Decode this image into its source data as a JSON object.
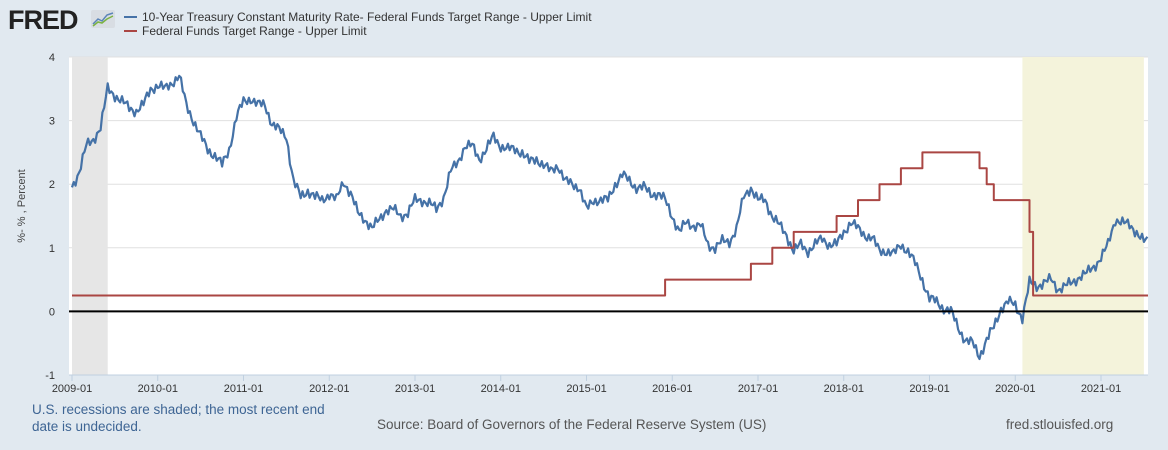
{
  "header": {
    "logo_text": "FRED",
    "logo_icon": "line-chart-icon"
  },
  "legend": [
    {
      "label": "10-Year Treasury Constant Maturity Rate- Federal Funds Target Range - Upper Limit",
      "color": "#4572a7"
    },
    {
      "label": "Federal Funds Target Range - Upper Limit",
      "color": "#aa4643"
    }
  ],
  "footer": {
    "recession_note": "U.S. recessions are shaded; the most recent end date is undecided.",
    "source": "Source: Board of Governors of the Federal Reserve System (US)",
    "site": "fred.stlouisfed.org"
  },
  "chart_data": {
    "type": "line",
    "title": "",
    "xlabel": "",
    "ylabel": "%- % , Percent",
    "xlim": [
      "2009-01",
      "2021-07"
    ],
    "ylim": [
      -1,
      4
    ],
    "yticks": [
      -1,
      0,
      1,
      2,
      3,
      4
    ],
    "xticks": [
      "2009-01",
      "2010-01",
      "2011-01",
      "2012-01",
      "2013-01",
      "2014-01",
      "2015-01",
      "2016-01",
      "2017-01",
      "2018-01",
      "2019-01",
      "2020-01",
      "2021-01"
    ],
    "grid": true,
    "zero_line": true,
    "recessions": [
      {
        "start": "2009-01",
        "end": "2009-06",
        "color": "#e6e6e6"
      },
      {
        "start": "2020-02",
        "end": "2021-07",
        "color": "#f4f3db"
      }
    ],
    "series": [
      {
        "name": "10-Year Treasury Constant Maturity Rate- Federal Funds Target Range - Upper Limit",
        "color": "#4572a7",
        "x": [
          "2009-01",
          "2009-02",
          "2009-03",
          "2009-04",
          "2009-05",
          "2009-06",
          "2009-07",
          "2009-08",
          "2009-09",
          "2009-10",
          "2009-11",
          "2009-12",
          "2010-01",
          "2010-02",
          "2010-03",
          "2010-04",
          "2010-05",
          "2010-06",
          "2010-07",
          "2010-08",
          "2010-09",
          "2010-10",
          "2010-11",
          "2010-12",
          "2011-01",
          "2011-02",
          "2011-03",
          "2011-04",
          "2011-05",
          "2011-06",
          "2011-07",
          "2011-08",
          "2011-09",
          "2011-10",
          "2011-11",
          "2011-12",
          "2012-01",
          "2012-02",
          "2012-03",
          "2012-04",
          "2012-05",
          "2012-06",
          "2012-07",
          "2012-08",
          "2012-09",
          "2012-10",
          "2012-11",
          "2012-12",
          "2013-01",
          "2013-02",
          "2013-03",
          "2013-04",
          "2013-05",
          "2013-06",
          "2013-07",
          "2013-08",
          "2013-09",
          "2013-10",
          "2013-11",
          "2013-12",
          "2014-01",
          "2014-02",
          "2014-03",
          "2014-04",
          "2014-05",
          "2014-06",
          "2014-07",
          "2014-08",
          "2014-09",
          "2014-10",
          "2014-11",
          "2014-12",
          "2015-01",
          "2015-02",
          "2015-03",
          "2015-04",
          "2015-05",
          "2015-06",
          "2015-07",
          "2015-08",
          "2015-09",
          "2015-10",
          "2015-11",
          "2015-12",
          "2016-01",
          "2016-02",
          "2016-03",
          "2016-04",
          "2016-05",
          "2016-06",
          "2016-07",
          "2016-08",
          "2016-09",
          "2016-10",
          "2016-11",
          "2016-12",
          "2017-01",
          "2017-02",
          "2017-03",
          "2017-04",
          "2017-05",
          "2017-06",
          "2017-07",
          "2017-08",
          "2017-09",
          "2017-10",
          "2017-11",
          "2017-12",
          "2018-01",
          "2018-02",
          "2018-03",
          "2018-04",
          "2018-05",
          "2018-06",
          "2018-07",
          "2018-08",
          "2018-09",
          "2018-10",
          "2018-11",
          "2018-12",
          "2019-01",
          "2019-02",
          "2019-03",
          "2019-04",
          "2019-05",
          "2019-06",
          "2019-07",
          "2019-08",
          "2019-09",
          "2019-10",
          "2019-11",
          "2019-12",
          "2020-01",
          "2020-02",
          "2020-03",
          "2020-04",
          "2020-05",
          "2020-06",
          "2020-07",
          "2020-08",
          "2020-09",
          "2020-10",
          "2020-11",
          "2020-12",
          "2021-01",
          "2021-02",
          "2021-03",
          "2021-04",
          "2021-05",
          "2021-06",
          "2021-07"
        ],
        "values": [
          1.95,
          2.2,
          2.6,
          2.7,
          2.9,
          3.5,
          3.4,
          3.3,
          3.2,
          3.15,
          3.25,
          3.5,
          3.55,
          3.5,
          3.6,
          3.7,
          3.25,
          3.0,
          2.75,
          2.55,
          2.45,
          2.3,
          2.55,
          3.05,
          3.3,
          3.35,
          3.25,
          3.25,
          2.95,
          2.85,
          2.75,
          2.05,
          1.8,
          1.9,
          1.8,
          1.75,
          1.85,
          1.75,
          2.05,
          1.85,
          1.55,
          1.45,
          1.3,
          1.45,
          1.6,
          1.6,
          1.5,
          1.55,
          1.75,
          1.75,
          1.7,
          1.6,
          1.8,
          2.2,
          2.35,
          2.6,
          2.6,
          2.4,
          2.55,
          2.75,
          2.6,
          2.55,
          2.55,
          2.5,
          2.35,
          2.4,
          2.3,
          2.2,
          2.3,
          2.05,
          2.0,
          1.95,
          1.6,
          1.75,
          1.75,
          1.75,
          2.0,
          2.15,
          2.05,
          1.95,
          1.95,
          1.85,
          1.85,
          1.75,
          1.5,
          1.25,
          1.4,
          1.35,
          1.35,
          1.05,
          1.0,
          1.1,
          1.1,
          1.3,
          1.8,
          1.95,
          1.75,
          1.75,
          1.5,
          1.35,
          1.2,
          0.95,
          1.05,
          0.95,
          1.05,
          1.15,
          1.05,
          1.05,
          1.25,
          1.4,
          1.3,
          1.2,
          1.15,
          0.95,
          0.95,
          0.9,
          1.05,
          0.95,
          0.75,
          0.5,
          0.2,
          0.15,
          0.05,
          0.0,
          -0.25,
          -0.45,
          -0.5,
          -0.7,
          -0.45,
          -0.25,
          0.05,
          0.15,
          0.1,
          -0.1,
          0.45,
          0.4,
          0.45,
          0.5,
          0.35,
          0.4,
          0.45,
          0.55,
          0.6,
          0.7,
          0.85,
          1.05,
          1.45,
          1.4,
          1.35,
          1.25,
          1.1
        ]
      },
      {
        "name": "Federal Funds Target Range - Upper Limit",
        "color": "#aa4643",
        "step": true,
        "x": [
          "2009-01",
          "2015-12",
          "2016-12",
          "2017-03",
          "2017-06",
          "2017-12",
          "2018-03",
          "2018-06",
          "2018-09",
          "2018-12",
          "2019-08",
          "2019-09",
          "2019-10",
          "2020-03",
          "2020-03-16",
          "2021-07"
        ],
        "values": [
          0.25,
          0.5,
          0.75,
          1.0,
          1.25,
          1.5,
          1.75,
          2.0,
          2.25,
          2.5,
          2.25,
          2.0,
          1.75,
          1.25,
          0.25,
          0.25
        ]
      }
    ]
  }
}
